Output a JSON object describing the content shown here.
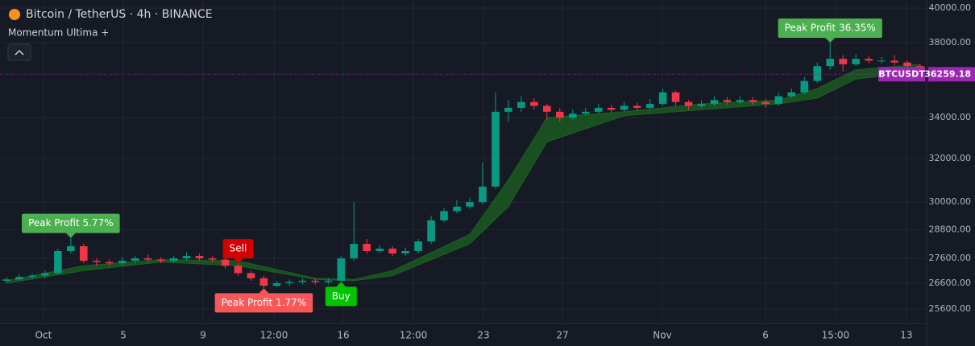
{
  "header": {
    "symbol": "Bitcoin / TetherUS · 4h · BINANCE",
    "indicator": "Momentum Ultima +"
  },
  "chart_data": {
    "type": "candlestick",
    "log": true,
    "grid": true,
    "up_color": "#089981",
    "down_color": "#f23645",
    "xlim": [
      -0.5,
      71.5
    ],
    "ylim": [
      25060,
      40480
    ],
    "yticks": [
      {
        "value": 40000,
        "label": "40000.00"
      },
      {
        "value": 38000,
        "label": "38000.00"
      },
      {
        "value": 34000,
        "label": "34000.00"
      },
      {
        "value": 32000,
        "label": "32000.00"
      },
      {
        "value": 30000,
        "label": "30000.00"
      },
      {
        "value": 28800,
        "label": "28800.00"
      },
      {
        "value": 27600,
        "label": "27600.00"
      },
      {
        "value": 26600,
        "label": "26600.00"
      },
      {
        "value": 25600,
        "label": "25600.00"
      }
    ],
    "xticks": [
      {
        "value": 2.88,
        "label": "Oct"
      },
      {
        "value": 9.08,
        "label": "5"
      },
      {
        "value": 15.28,
        "label": "9"
      },
      {
        "value": 20.79,
        "label": "12:00"
      },
      {
        "value": 26.17,
        "label": "16"
      },
      {
        "value": 31.62,
        "label": "12:00"
      },
      {
        "value": 37.07,
        "label": "23"
      },
      {
        "value": 43.2,
        "label": "27"
      },
      {
        "value": 50.96,
        "label": "Nov"
      },
      {
        "value": 58.98,
        "label": "6"
      },
      {
        "value": 64.42,
        "label": "15:00"
      },
      {
        "value": 69.93,
        "label": "13"
      }
    ],
    "ohlc": {
      "open": [
        26700,
        26750,
        26850,
        26900,
        27000,
        27900,
        28100,
        27500,
        27450,
        27400,
        27500,
        27600,
        27550,
        27500,
        27600,
        27700,
        27600,
        27550,
        27300,
        27000,
        26800,
        26500,
        26600,
        26650,
        26700,
        26650,
        26700,
        27600,
        28200,
        27900,
        28000,
        27800,
        27900,
        28300,
        29200,
        29600,
        29800,
        30000,
        30700,
        34300,
        34500,
        34800,
        34600,
        34300,
        34000,
        34200,
        34300,
        34500,
        34400,
        34600,
        34500,
        34700,
        35300,
        34800,
        34600,
        34700,
        34900,
        34800,
        34900,
        34800,
        34700,
        35100,
        35300,
        35900,
        36700,
        37100,
        36800,
        37100,
        37000,
        37000,
        36900,
        36700
      ],
      "high": [
        26850,
        26950,
        27000,
        27100,
        28000,
        28450,
        28200,
        27600,
        27550,
        27650,
        27700,
        27750,
        27650,
        27700,
        27850,
        27800,
        27700,
        27650,
        27400,
        27100,
        26900,
        26700,
        26750,
        26800,
        26800,
        26800,
        27700,
        30000,
        28400,
        28150,
        28100,
        28050,
        28400,
        29400,
        29750,
        30100,
        30200,
        31800,
        35300,
        34900,
        35100,
        35000,
        34700,
        34500,
        34400,
        34500,
        34700,
        34650,
        34800,
        34750,
        34950,
        35500,
        35400,
        34900,
        34900,
        35100,
        35050,
        35100,
        35050,
        34950,
        35300,
        35500,
        36100,
        36900,
        38000,
        37300,
        37350,
        37250,
        37200,
        37300,
        37000,
        36800
      ],
      "low": [
        26600,
        26700,
        26750,
        26800,
        26950,
        27800,
        27400,
        27300,
        27300,
        27300,
        27400,
        27450,
        27400,
        27400,
        27500,
        27500,
        27450,
        27200,
        26900,
        26700,
        26400,
        26450,
        26500,
        26550,
        26550,
        26550,
        26650,
        27500,
        27800,
        27800,
        27700,
        27700,
        27800,
        28200,
        29100,
        29500,
        29700,
        29900,
        30600,
        33800,
        34300,
        34400,
        33900,
        33800,
        33900,
        34100,
        34200,
        34250,
        34300,
        34350,
        34400,
        34600,
        34600,
        34400,
        34500,
        34600,
        34650,
        34700,
        34650,
        34500,
        34600,
        35000,
        35200,
        35800,
        36500,
        36400,
        36700,
        36850,
        36850,
        36750,
        36550,
        36200
      ],
      "close": [
        26750,
        26850,
        26900,
        27000,
        27900,
        28100,
        27500,
        27450,
        27400,
        27500,
        27600,
        27550,
        27500,
        27600,
        27700,
        27600,
        27550,
        27300,
        27000,
        26800,
        26500,
        26600,
        26650,
        26700,
        26650,
        26700,
        27600,
        28200,
        27900,
        28000,
        27800,
        27900,
        28300,
        29200,
        29600,
        29800,
        30000,
        30700,
        34300,
        34500,
        34800,
        34600,
        34300,
        34000,
        34200,
        34300,
        34500,
        34400,
        34600,
        34500,
        34700,
        35300,
        34800,
        34600,
        34700,
        34900,
        34800,
        34900,
        34800,
        34700,
        35100,
        35300,
        35900,
        36700,
        37100,
        36800,
        37100,
        37000,
        37000,
        36900,
        36700,
        36259.18
      ]
    },
    "ribbon": {
      "color": "#1b5e20",
      "x": [
        0,
        6,
        12,
        18,
        24,
        27,
        30,
        36,
        39,
        42,
        48,
        54,
        60,
        63,
        66,
        71
      ],
      "upper": [
        26700,
        27300,
        27550,
        27500,
        26800,
        26750,
        27100,
        28600,
        31000,
        34000,
        34300,
        34700,
        34900,
        35500,
        36500,
        36800
      ],
      "lower": [
        26600,
        27100,
        27450,
        27300,
        26750,
        26700,
        26900,
        28200,
        29800,
        32800,
        34100,
        34400,
        34700,
        35000,
        36000,
        36400
      ]
    },
    "symbol_tag": "BTCUSDT",
    "price_tag_color": "#9c27b0",
    "annotations": [
      {
        "text": "Peak Profit 5.77%",
        "x": 5,
        "price": 28450,
        "position": "above",
        "color": "#4caf50"
      },
      {
        "text": "Sell",
        "x": 18,
        "price": 27400,
        "position": "above",
        "color": "#d50000"
      },
      {
        "text": "Peak Profit 1.77%",
        "x": 20,
        "price": 26400,
        "position": "below",
        "color": "#f75757"
      },
      {
        "text": "Buy",
        "x": 26,
        "price": 26650,
        "position": "below",
        "color": "#00c400"
      },
      {
        "text": "Peak Profit 36.35%",
        "x": 64,
        "price": 38000,
        "position": "above",
        "color": "#4caf50"
      }
    ]
  }
}
